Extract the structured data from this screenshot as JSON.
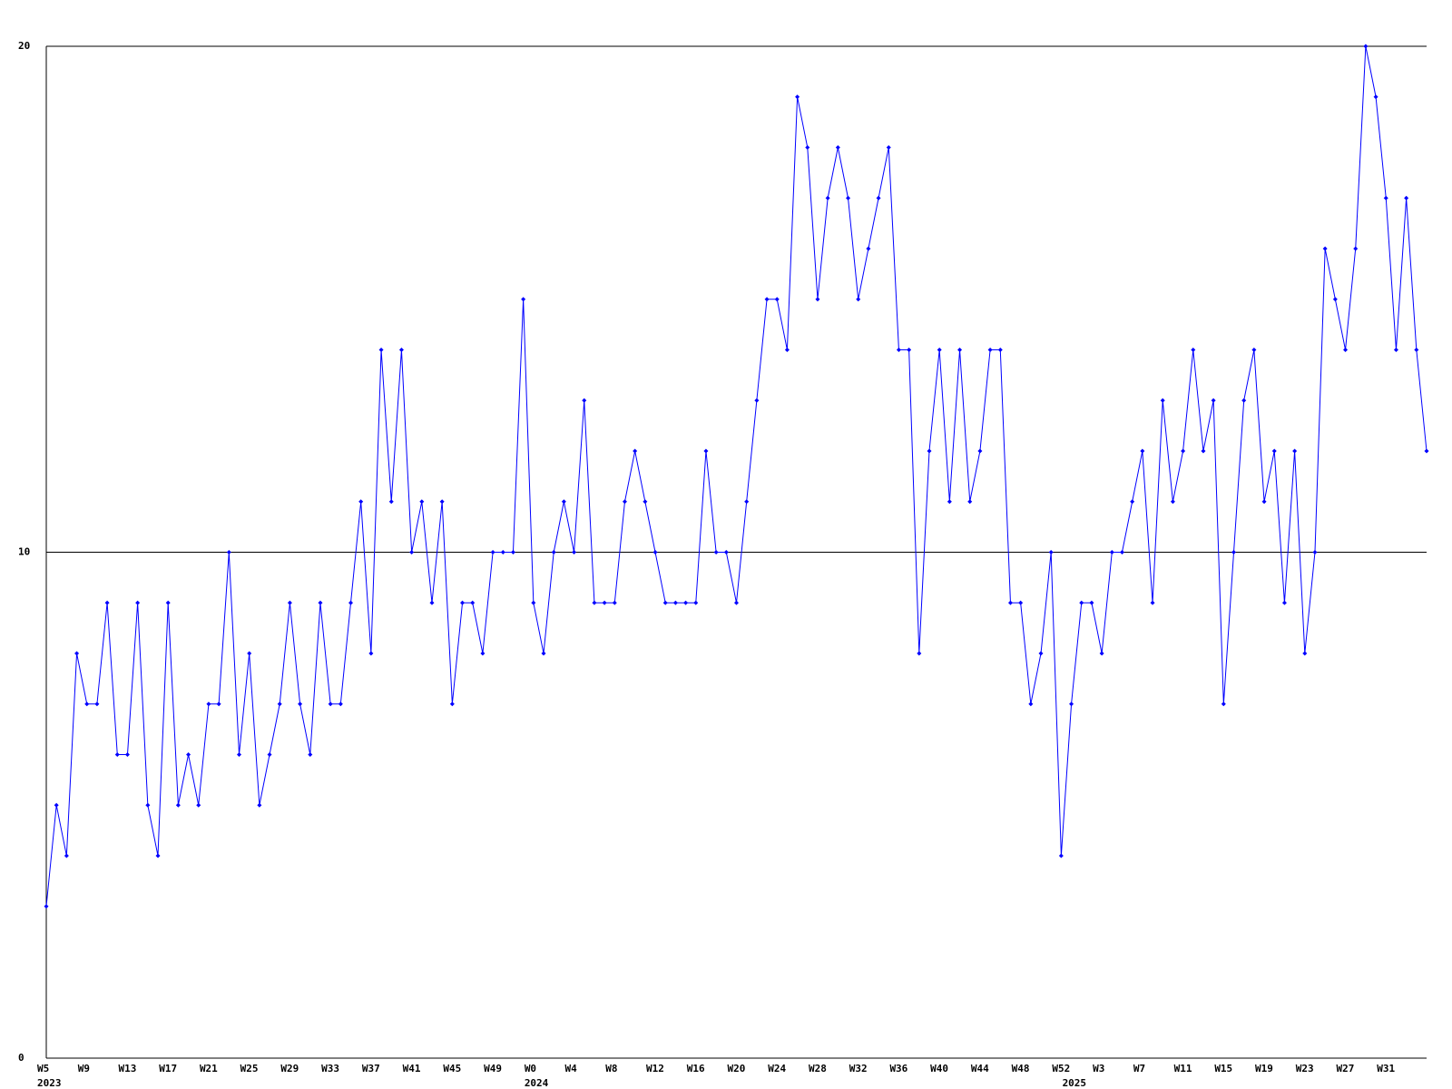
{
  "chart_data": {
    "type": "line",
    "categories": [
      "W5",
      null,
      null,
      null,
      "W9",
      null,
      null,
      null,
      "W13",
      null,
      null,
      null,
      "W17",
      null,
      null,
      null,
      "W21",
      null,
      null,
      null,
      "W25",
      null,
      null,
      null,
      "W29",
      null,
      null,
      null,
      "W33",
      null,
      null,
      null,
      "W37",
      null,
      null,
      null,
      "W41",
      null,
      null,
      null,
      "W45",
      null,
      null,
      null,
      "W49",
      null,
      null,
      null,
      "W0",
      null,
      null,
      null,
      "W4",
      null,
      null,
      null,
      "W8",
      null,
      null,
      null,
      "W12",
      null,
      null,
      null,
      "W16",
      null,
      null,
      null,
      "W20",
      null,
      null,
      null,
      "W24",
      null,
      null,
      null,
      "W28",
      null,
      null,
      null,
      "W32",
      null,
      null,
      null,
      "W36",
      null,
      null,
      null,
      "W40",
      null,
      null,
      null,
      "W44",
      null,
      null,
      null,
      "W48",
      null,
      null,
      null,
      "W52",
      null,
      null,
      null,
      "W3",
      null,
      null,
      null,
      "W7",
      null,
      null,
      null,
      "W11",
      null,
      null,
      null,
      "W15",
      null,
      null,
      null,
      "W19",
      null,
      null,
      null,
      "W23",
      null,
      null,
      null,
      "W27",
      null,
      null,
      null,
      "W31",
      null,
      null,
      null,
      null
    ],
    "years": [
      "2023",
      null,
      null,
      null,
      null,
      null,
      null,
      null,
      null,
      null,
      null,
      null,
      null,
      null,
      null,
      null,
      null,
      null,
      null,
      null,
      null,
      null,
      null,
      null,
      null,
      null,
      null,
      null,
      null,
      null,
      null,
      null,
      null,
      null,
      null,
      null,
      null,
      null,
      null,
      null,
      null,
      null,
      null,
      null,
      null,
      null,
      null,
      null,
      "2024",
      null,
      null,
      null,
      null,
      null,
      null,
      null,
      null,
      null,
      null,
      null,
      null,
      null,
      null,
      null,
      null,
      null,
      null,
      null,
      null,
      null,
      null,
      null,
      null,
      null,
      null,
      null,
      null,
      null,
      null,
      null,
      null,
      null,
      null,
      null,
      null,
      null,
      null,
      null,
      null,
      null,
      null,
      null,
      null,
      null,
      null,
      null,
      null,
      null,
      null,
      null,
      null,
      "2025",
      null,
      null,
      null,
      null,
      null,
      null,
      null,
      null,
      null,
      null,
      null,
      null,
      null,
      null,
      null,
      null,
      null,
      null,
      null,
      null,
      null,
      null,
      null,
      null,
      null,
      null,
      null,
      null,
      null,
      null,
      null,
      null,
      null,
      null,
      null
    ],
    "series": [
      {
        "color": "#0000ff",
        "values": [
          3,
          5,
          4,
          8,
          7,
          7,
          9,
          6,
          6,
          9,
          5,
          4,
          9,
          5,
          6,
          5,
          7,
          7,
          10,
          6,
          8,
          5,
          6,
          7,
          9,
          7,
          6,
          9,
          7,
          7,
          9,
          11,
          8,
          14,
          11,
          14,
          10,
          11,
          9,
          11,
          7,
          9,
          9,
          8,
          10,
          10,
          10,
          15,
          9,
          8,
          10,
          11,
          10,
          13,
          9,
          9,
          9,
          11,
          12,
          11,
          10,
          9,
          9,
          9,
          9,
          12,
          10,
          10,
          9,
          11,
          13,
          15,
          15,
          14,
          19,
          18,
          15,
          17,
          18,
          17,
          15,
          16,
          17,
          18,
          14,
          14,
          8,
          12,
          14,
          11,
          14,
          11,
          12,
          14,
          14,
          9,
          9,
          7,
          8,
          10,
          4,
          7,
          9,
          9,
          8,
          10,
          10,
          11,
          12,
          9,
          13,
          11,
          12,
          14,
          12,
          13,
          7,
          10,
          13,
          14,
          11,
          12,
          9,
          12,
          8,
          10,
          16,
          15,
          14,
          16,
          20,
          19,
          17,
          14,
          17,
          14,
          12
        ]
      }
    ],
    "ylim": [
      0,
      20
    ],
    "yticks": [
      0,
      10,
      20
    ],
    "grid": true
  }
}
